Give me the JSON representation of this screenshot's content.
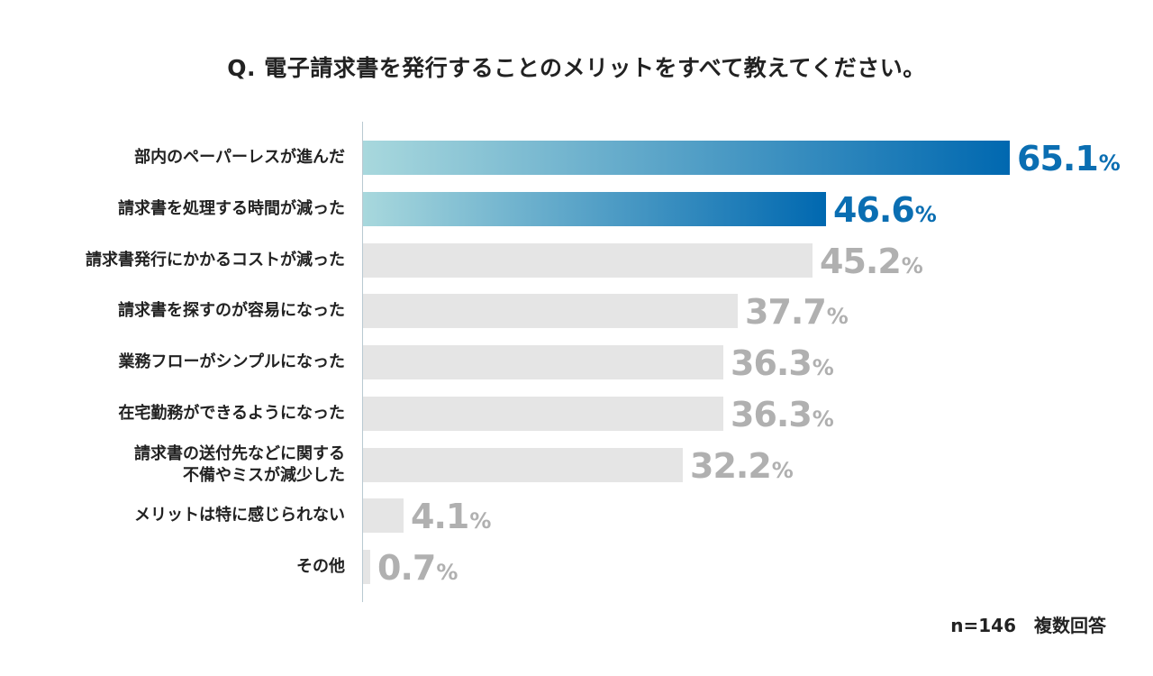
{
  "chart_data": {
    "type": "bar",
    "orientation": "horizontal",
    "title": "Q. 電子請求書を発行することのメリットをすべて教えてください。",
    "categories": [
      "部内のペーパーレスが進んだ",
      "請求書を処理する時間が減った",
      "請求書発行にかかるコストが減った",
      "請求書を探すのが容易になった",
      "業務フローがシンプルになった",
      "在宅勤務ができるようになった",
      "請求書の送付先などに関する\n不備やミスが減少した",
      "メリットは特に感じられない",
      "その他"
    ],
    "values": [
      65.1,
      46.6,
      45.2,
      37.7,
      36.3,
      36.3,
      32.2,
      4.1,
      0.7
    ],
    "highlight_count": 2,
    "unit": "%",
    "xlim": [
      0,
      65.1
    ],
    "xlabel": "",
    "ylabel": "",
    "note": "n=146　複数回答",
    "colors": {
      "highlight_start": "#a8d8dd",
      "highlight_end": "#0068b0",
      "highlight_text": "#0a6eb2",
      "plain_bar": "#e5e5e5",
      "plain_text": "#b0b0b0"
    }
  }
}
